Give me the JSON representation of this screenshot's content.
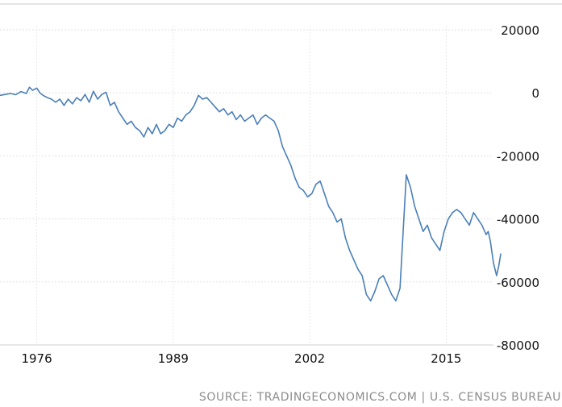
{
  "chart_data": {
    "type": "line",
    "title": "",
    "xlabel": "",
    "ylabel": "",
    "source": "SOURCE: TRADINGECONOMICS.COM | U.S. CENSUS BUREAU",
    "xlim": [
      1972.5,
      2019.5
    ],
    "ylim": [
      -80000,
      20000
    ],
    "x_ticks": [
      1976,
      1989,
      2002,
      2015
    ],
    "x_tick_labels": [
      "1976",
      "1989",
      "2002",
      "2015"
    ],
    "y_ticks": [
      20000,
      0,
      -20000,
      -40000,
      -60000,
      -80000
    ],
    "y_tick_labels": [
      "20000",
      "0",
      "-20000",
      "-40000",
      "-60000",
      "-80000"
    ],
    "grid": true,
    "y_axis_position": "right",
    "line_color": "#4a7fb8",
    "series": [
      {
        "values": [
          [
            1972.5,
            -800
          ],
          [
            1973.0,
            -500
          ],
          [
            1973.5,
            -200
          ],
          [
            1974.0,
            -600
          ],
          [
            1974.5,
            400
          ],
          [
            1975.0,
            -200
          ],
          [
            1975.3,
            1800
          ],
          [
            1975.6,
            800
          ],
          [
            1976.0,
            1500
          ],
          [
            1976.3,
            0
          ],
          [
            1976.6,
            -800
          ],
          [
            1977.0,
            -1500
          ],
          [
            1977.4,
            -2000
          ],
          [
            1977.8,
            -3000
          ],
          [
            1978.2,
            -2000
          ],
          [
            1978.6,
            -4000
          ],
          [
            1979.0,
            -2000
          ],
          [
            1979.4,
            -3500
          ],
          [
            1979.8,
            -1500
          ],
          [
            1980.2,
            -2500
          ],
          [
            1980.6,
            -500
          ],
          [
            1981.0,
            -3000
          ],
          [
            1981.4,
            500
          ],
          [
            1981.8,
            -2000
          ],
          [
            1982.2,
            -500
          ],
          [
            1982.6,
            200
          ],
          [
            1983.0,
            -4000
          ],
          [
            1983.4,
            -3000
          ],
          [
            1983.8,
            -6000
          ],
          [
            1984.2,
            -8000
          ],
          [
            1984.6,
            -10000
          ],
          [
            1985.0,
            -9000
          ],
          [
            1985.4,
            -11000
          ],
          [
            1985.8,
            -12000
          ],
          [
            1986.2,
            -14000
          ],
          [
            1986.6,
            -11000
          ],
          [
            1987.0,
            -13000
          ],
          [
            1987.4,
            -10000
          ],
          [
            1987.8,
            -13000
          ],
          [
            1988.2,
            -12000
          ],
          [
            1988.6,
            -10000
          ],
          [
            1989.0,
            -11000
          ],
          [
            1989.4,
            -8000
          ],
          [
            1989.8,
            -9000
          ],
          [
            1990.2,
            -7000
          ],
          [
            1990.6,
            -6000
          ],
          [
            1991.0,
            -4000
          ],
          [
            1991.4,
            -800
          ],
          [
            1991.8,
            -2000
          ],
          [
            1992.2,
            -1500
          ],
          [
            1992.6,
            -3000
          ],
          [
            1993.0,
            -4500
          ],
          [
            1993.4,
            -6000
          ],
          [
            1993.8,
            -5000
          ],
          [
            1994.2,
            -7000
          ],
          [
            1994.6,
            -6000
          ],
          [
            1995.0,
            -8500
          ],
          [
            1995.4,
            -7000
          ],
          [
            1995.8,
            -9000
          ],
          [
            1996.2,
            -8000
          ],
          [
            1996.6,
            -7000
          ],
          [
            1997.0,
            -10000
          ],
          [
            1997.4,
            -8000
          ],
          [
            1997.8,
            -7000
          ],
          [
            1998.2,
            -8000
          ],
          [
            1998.6,
            -9000
          ],
          [
            1999.0,
            -12000
          ],
          [
            1999.4,
            -17000
          ],
          [
            1999.8,
            -20000
          ],
          [
            2000.2,
            -23000
          ],
          [
            2000.6,
            -27000
          ],
          [
            2001.0,
            -30000
          ],
          [
            2001.4,
            -31000
          ],
          [
            2001.8,
            -33000
          ],
          [
            2002.2,
            -32000
          ],
          [
            2002.6,
            -29000
          ],
          [
            2003.0,
            -28000
          ],
          [
            2003.4,
            -32000
          ],
          [
            2003.8,
            -36000
          ],
          [
            2004.2,
            -38000
          ],
          [
            2004.6,
            -41000
          ],
          [
            2005.0,
            -40000
          ],
          [
            2005.4,
            -46000
          ],
          [
            2005.8,
            -50000
          ],
          [
            2006.2,
            -53000
          ],
          [
            2006.6,
            -56000
          ],
          [
            2007.0,
            -58000
          ],
          [
            2007.4,
            -64000
          ],
          [
            2007.8,
            -66000
          ],
          [
            2008.2,
            -63000
          ],
          [
            2008.6,
            -59000
          ],
          [
            2009.0,
            -58000
          ],
          [
            2009.4,
            -61000
          ],
          [
            2009.8,
            -64000
          ],
          [
            2010.2,
            -66000
          ],
          [
            2010.6,
            -62000
          ],
          [
            2010.9,
            -44000
          ],
          [
            2011.2,
            -26000
          ],
          [
            2011.6,
            -30000
          ],
          [
            2012.0,
            -36000
          ],
          [
            2012.4,
            -40000
          ],
          [
            2012.8,
            -44000
          ],
          [
            2013.2,
            -42000
          ],
          [
            2013.6,
            -46000
          ],
          [
            2014.0,
            -48000
          ],
          [
            2014.4,
            -50000
          ],
          [
            2014.8,
            -44000
          ],
          [
            2015.2,
            -40000
          ],
          [
            2015.6,
            -38000
          ],
          [
            2016.0,
            -37000
          ],
          [
            2016.4,
            -38000
          ],
          [
            2016.8,
            -40000
          ],
          [
            2017.2,
            -42000
          ],
          [
            2017.6,
            -38000
          ],
          [
            2018.0,
            -40000
          ],
          [
            2018.4,
            -42000
          ],
          [
            2018.8,
            -45000
          ],
          [
            2019.0,
            -44000
          ],
          [
            2019.2,
            -47000
          ],
          [
            2019.5,
            -54000
          ],
          [
            2019.8,
            -58000
          ],
          [
            2020.0,
            -55000
          ],
          [
            2020.2,
            -51000
          ]
        ]
      }
    ]
  }
}
